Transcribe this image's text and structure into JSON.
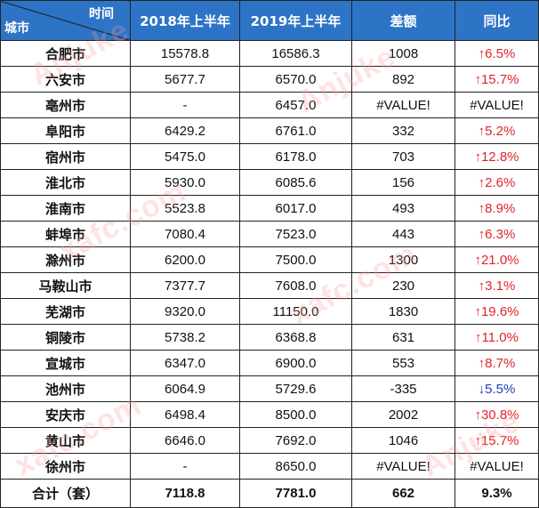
{
  "header": {
    "corner_top": "时间",
    "corner_bottom": "城市",
    "col_2018": "2018年上半年",
    "col_2019": "2019年上半年",
    "col_diff": "差额",
    "col_yoy": "同比"
  },
  "rows": [
    {
      "city": "合肥市",
      "v2018": "15578.8",
      "v2019": "16586.3",
      "diff": "1008",
      "yoy": "↑6.5%",
      "trend": "up"
    },
    {
      "city": "六安市",
      "v2018": "5677.7",
      "v2019": "6570.0",
      "diff": "892",
      "yoy": "↑15.7%",
      "trend": "up"
    },
    {
      "city": "亳州市",
      "v2018": "-",
      "v2019": "6457.0",
      "diff": "#VALUE!",
      "yoy": "#VALUE!",
      "trend": "na"
    },
    {
      "city": "阜阳市",
      "v2018": "6429.2",
      "v2019": "6761.0",
      "diff": "332",
      "yoy": "↑5.2%",
      "trend": "up"
    },
    {
      "city": "宿州市",
      "v2018": "5475.0",
      "v2019": "6178.0",
      "diff": "703",
      "yoy": "↑12.8%",
      "trend": "up"
    },
    {
      "city": "淮北市",
      "v2018": "5930.0",
      "v2019": "6085.6",
      "diff": "156",
      "yoy": "↑2.6%",
      "trend": "up"
    },
    {
      "city": "淮南市",
      "v2018": "5523.8",
      "v2019": "6017.0",
      "diff": "493",
      "yoy": "↑8.9%",
      "trend": "up"
    },
    {
      "city": "蚌埠市",
      "v2018": "7080.4",
      "v2019": "7523.0",
      "diff": "443",
      "yoy": "↑6.3%",
      "trend": "up"
    },
    {
      "city": "滁州市",
      "v2018": "6200.0",
      "v2019": "7500.0",
      "diff": "1300",
      "yoy": "↑21.0%",
      "trend": "up"
    },
    {
      "city": "马鞍山市",
      "v2018": "7377.7",
      "v2019": "7608.0",
      "diff": "230",
      "yoy": "↑3.1%",
      "trend": "up"
    },
    {
      "city": "芜湖市",
      "v2018": "9320.0",
      "v2019": "11150.0",
      "diff": "1830",
      "yoy": "↑19.6%",
      "trend": "up"
    },
    {
      "city": "铜陵市",
      "v2018": "5738.2",
      "v2019": "6368.8",
      "diff": "631",
      "yoy": "↑11.0%",
      "trend": "up"
    },
    {
      "city": "宣城市",
      "v2018": "6347.0",
      "v2019": "6900.0",
      "diff": "553",
      "yoy": "↑8.7%",
      "trend": "up"
    },
    {
      "city": "池州市",
      "v2018": "6064.9",
      "v2019": "5729.6",
      "diff": "-335",
      "yoy": "↓5.5%",
      "trend": "down"
    },
    {
      "city": "安庆市",
      "v2018": "6498.4",
      "v2019": "8500.0",
      "diff": "2002",
      "yoy": "↑30.8%",
      "trend": "up"
    },
    {
      "city": "黄山市",
      "v2018": "6646.0",
      "v2019": "7692.0",
      "diff": "1046",
      "yoy": "↑15.7%",
      "trend": "up"
    },
    {
      "city": "徐州市",
      "v2018": "-",
      "v2019": "8650.0",
      "diff": "#VALUE!",
      "yoy": "#VALUE!",
      "trend": "na"
    }
  ],
  "total": {
    "label": "合计（套）",
    "v2018": "7118.8",
    "v2019": "7781.0",
    "diff": "662",
    "yoy": "9.3%"
  },
  "colors": {
    "header_bg": "#2e74c6",
    "up": "#e0242a",
    "down": "#1f3fb8"
  },
  "watermarks": [
    "Anjuke",
    "xafc.com",
    "xafc.com",
    "Anjuke",
    "xafc.com",
    "Anjuke"
  ]
}
